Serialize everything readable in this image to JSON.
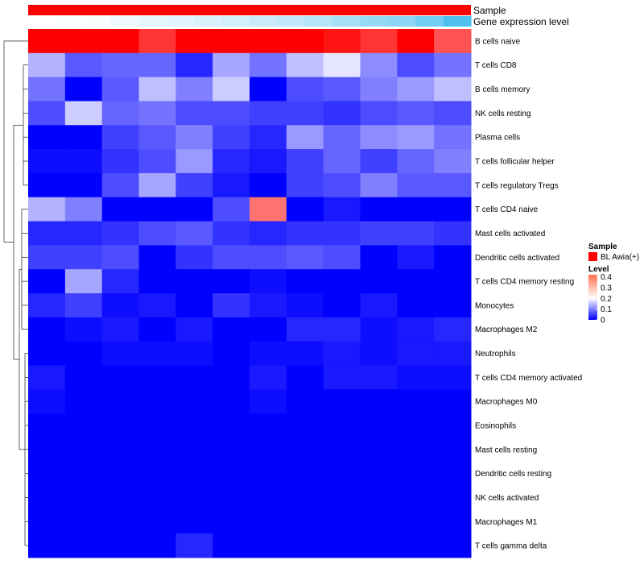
{
  "chart_data": {
    "type": "heatmap",
    "annotations": [
      {
        "name": "Sample",
        "kind": "categorical",
        "values": [
          "BL Awia(+)",
          "BL Awia(+)",
          "BL Awia(+)",
          "BL Awia(+)",
          "BL Awia(+)",
          "BL Awia(+)",
          "BL Awia(+)",
          "BL Awia(+)",
          "BL Awia(+)",
          "BL Awia(+)",
          "BL Awia(+)",
          "BL Awia(+)",
          "BL Awia(+)",
          "BL Awia(+)",
          "BL Awia(+)",
          "BL Awia(+)",
          "BL Awia(+)",
          "BL Awia(+)",
          "BL Awia(+)",
          "BL Awia(+)",
          "BL Awia(+)",
          "BL Awia(+)",
          "BL Awia(+)",
          "BL Awia(+)",
          "BL Awia(+)",
          "BL Awia(+)",
          "BL Awia(+)",
          "BL Awia(+)",
          "BL Awia(+)",
          "BL Awia(+)",
          "BL Awia(+)",
          "BL Awia(+)",
          "BL Awia(+)",
          "BL Awia(+)",
          "BL Awia(+)",
          "BL Awia(+)",
          "BL Awia(+)",
          "BL Awia(+)",
          "BL Awia(+)",
          "BL Awia(+)",
          "BL Awia(+)",
          "BL Awia(+)",
          "BL Awia(+)",
          "BL Awia(+)",
          "BL Awia(+)",
          "BL Awia(+)",
          "BL Awia(+)",
          "BL Awia(+)",
          "BL Awia(+)",
          "BL Awia(+)",
          "BL Awia(+)",
          "BL Awia(+)",
          "BL Awia(+)",
          "BL Awia(+)",
          "BL Awia(+)",
          "BL Awia(+)",
          "BL Awia(+)",
          "BL Awia(+)",
          "BL Awia(+)",
          "BL Awia(+)",
          "BL Awia(+)",
          "BL Awia(+)",
          "BL Awia(+)",
          "BL Awia(+)",
          "BL Awia(+)",
          "BL Awia(+)",
          "BL Awia(+)",
          "BL Awia(+)",
          "BL Awia(+)",
          "BL Awia(+)",
          "BL Awia(+)",
          "BL Awia(+)",
          "BL Awia(+)",
          "BL Awia(+)",
          "BL Awia(+)",
          "BL Awia(+)",
          "BL Awia(+)",
          "BL Awia(+)",
          "BL Awia(+)",
          "BL Awia(+)",
          "BL Awia(+)",
          "BL Awia(+)",
          "BL Awia(+)",
          "BL Awia(+)",
          "BL Awia(+)",
          "BL Awia(+)",
          "BL Awia(+)",
          "BL Awia(+)",
          "BL Awia(+)",
          "BL Awia(+)",
          "BL Awia(+)",
          "BL Awia(+)",
          "BL Awia(+)",
          "BL Awia(+)",
          "BL Awia(+)",
          "BL Awia(+)",
          "BL Awia(+)",
          "BL Awia(+)",
          "BL Awia(+)",
          "BL Awia(+)",
          "BL Awia(+)",
          "BL Awia(+)",
          "BL Awia(+)",
          "BL Awia(+)",
          "BL Awia(+)",
          "BL Awia(+)",
          "BL Awia(+)",
          "BL Awia(+)",
          "BL Awia(+)",
          "BL Awia(+)",
          "BL Awia(+)",
          "BL Awia(+)",
          "BL Awia(+)",
          "BL Awia(+)",
          "BL Awia(+)",
          "BL Awia(+)",
          "BL Awia(+)",
          "BL Awia(+)",
          "BL Awia(+)",
          "BL Awia(+)",
          "BL Awia(+)",
          "BL Awia(+)",
          "BL Awia(+)",
          "BL Awia(+)",
          "BL Awia(+)",
          "BL Awia(+)",
          "BL Awia(+)",
          "BL Awia(+)",
          "BL Awia(+)",
          "BL Awia(+)",
          "BL Awia(+)",
          "BL Awia(+)",
          "BL Awia(+)",
          "BL Awia(+)",
          "BL Awia(+)",
          "BL Awia(+)",
          "BL Awia(+)",
          "BL Awia(+)",
          "BL Awia(+)",
          "BL Awia(+)",
          "BL Awia(+)",
          "BL Awia(+)",
          "BL Awia(+)",
          "BL Awia(+)",
          "BL Awia(+)",
          "BL Awia(+)",
          "BL Awia(+)",
          "BL Awia(+)",
          "BL Awia(+)",
          "BL Awia(+)",
          "BL Awia(+)",
          "BL Awia(+)",
          "BL Awia(+)",
          "BL Awia(+)",
          "BL Awia(+)",
          "BL Awia(+)",
          "BL Awia(+)",
          "BL Awia(+)",
          "BL Awia(+)",
          "BL Awia(+)",
          "BL Awia(+)",
          "BL Awia(+)",
          "BL Awia(+)",
          "BL Awia(+)",
          "BL Awia(+)",
          "BL Awia(+)",
          "BL Awia(+)",
          "BL Awia(+)",
          "BL Awia(+)",
          "BL Awia(+)",
          "BL Awia(+)",
          "BL Awia(+)",
          "BL Awia(+)",
          "BL Awia(+)",
          "BL Awia(+)",
          "BL Awia(+)",
          "BL Awia(+)",
          "BL Awia(+)",
          "BL Awia(+)",
          "BL Awia(+)",
          "BL Awia(+)",
          "BL Awia(+)",
          "BL Awia(+)",
          "BL Awia(+)",
          "BL Awia(+)",
          "BL Awia(+)",
          "BL Awia(+)",
          "BL Awia(+)",
          "BL Awia(+)",
          "BL Awia(+)",
          "BL Awia(+)",
          "BL Awia(+)",
          "BL Awia(+)",
          "BL Awia(+)",
          "BL Awia(+)",
          "BL Awia(+)",
          "BL Awia(+)",
          "BL Awia(+)",
          "BL Awia(+)",
          "BL Awia(+)"
        ],
        "color": "#ff0000"
      },
      {
        "name": "Gene expression level",
        "kind": "continuous",
        "values": [
          0.0,
          0.02,
          0.04,
          0.1,
          0.14,
          0.18,
          0.22,
          0.26,
          0.3,
          0.36,
          0.42,
          0.52,
          0.6,
          0.66,
          0.8,
          1.0
        ],
        "color_low": "#ffffff",
        "color_high": "#4fc1ef"
      }
    ],
    "rows": [
      "B cells naive",
      "T cells CD8",
      "B cells memory",
      "NK cells resting",
      "Plasma cells",
      "T cells follicular helper",
      "T cells regulatory  Tregs",
      "T cells CD4 naive",
      "Mast cells activated",
      "Dendritic cells activated",
      "T cells CD4 memory resting",
      "Monocytes",
      "Macrophages M2",
      "Neutrophils",
      "T cells CD4 memory activated",
      "Macrophages M0",
      "Eosinophils",
      "Mast cells resting",
      "Dendritic cells resting",
      "NK cells activated",
      "Macrophages M1",
      "T cells gamma delta"
    ],
    "values": [
      [
        0.42,
        0.42,
        0.42,
        0.33,
        0.38,
        0.39,
        0.41,
        0.41,
        0.35,
        0.33,
        0.38,
        0.31
      ],
      [
        0.14,
        0.07,
        0.08,
        0.08,
        0.03,
        0.13,
        0.09,
        0.15,
        0.18,
        0.11,
        0.06,
        0.09
      ],
      [
        0.09,
        0.0,
        0.07,
        0.15,
        0.1,
        0.16,
        0.0,
        0.06,
        0.07,
        0.1,
        0.12,
        0.15
      ],
      [
        0.06,
        0.16,
        0.08,
        0.09,
        0.06,
        0.06,
        0.05,
        0.05,
        0.04,
        0.06,
        0.07,
        0.06
      ],
      [
        0.0,
        0.0,
        0.05,
        0.07,
        0.1,
        0.05,
        0.03,
        0.12,
        0.08,
        0.11,
        0.12,
        0.09
      ],
      [
        0.01,
        0.01,
        0.04,
        0.06,
        0.12,
        0.03,
        0.02,
        0.05,
        0.08,
        0.05,
        0.08,
        0.1
      ],
      [
        0.0,
        0.0,
        0.06,
        0.13,
        0.05,
        0.02,
        0.0,
        0.05,
        0.06,
        0.1,
        0.07,
        0.07
      ],
      [
        0.14,
        0.1,
        0.0,
        0.0,
        0.0,
        0.06,
        0.29,
        0.0,
        0.02,
        0.0,
        0.0,
        0.0
      ],
      [
        0.03,
        0.03,
        0.04,
        0.06,
        0.07,
        0.04,
        0.03,
        0.04,
        0.04,
        0.05,
        0.05,
        0.04
      ],
      [
        0.05,
        0.05,
        0.06,
        0.0,
        0.04,
        0.06,
        0.06,
        0.07,
        0.06,
        0.0,
        0.02,
        0.0
      ],
      [
        0.0,
        0.13,
        0.03,
        0.0,
        0.0,
        0.0,
        0.01,
        0.0,
        0.0,
        0.0,
        0.0,
        0.0
      ],
      [
        0.03,
        0.05,
        0.01,
        0.02,
        0.0,
        0.04,
        0.02,
        0.01,
        0.0,
        0.02,
        0.0,
        0.0
      ],
      [
        0.0,
        0.01,
        0.02,
        0.0,
        0.02,
        0.0,
        0.0,
        0.03,
        0.03,
        0.01,
        0.02,
        0.03
      ],
      [
        0.0,
        0.0,
        0.01,
        0.01,
        0.01,
        0.0,
        0.01,
        0.01,
        0.02,
        0.01,
        0.02,
        0.02
      ],
      [
        0.02,
        0.0,
        0.0,
        0.0,
        0.0,
        0.0,
        0.02,
        0.0,
        0.02,
        0.02,
        0.01,
        0.01
      ],
      [
        0.01,
        0.0,
        0.0,
        0.0,
        0.0,
        0.0,
        0.01,
        0.0,
        0.0,
        0.0,
        0.0,
        0.0
      ],
      [
        0.0,
        0.0,
        0.0,
        0.0,
        0.0,
        0.0,
        0.0,
        0.0,
        0.0,
        0.0,
        0.0,
        0.0
      ],
      [
        0.0,
        0.0,
        0.0,
        0.0,
        0.0,
        0.0,
        0.0,
        0.0,
        0.0,
        0.0,
        0.0,
        0.0
      ],
      [
        0.0,
        0.0,
        0.0,
        0.0,
        0.0,
        0.0,
        0.0,
        0.0,
        0.0,
        0.0,
        0.0,
        0.0
      ],
      [
        0.0,
        0.0,
        0.0,
        0.0,
        0.0,
        0.0,
        0.0,
        0.0,
        0.0,
        0.0,
        0.0,
        0.0
      ],
      [
        0.0,
        0.0,
        0.0,
        0.0,
        0.0,
        0.0,
        0.0,
        0.0,
        0.0,
        0.0,
        0.0,
        0.0
      ],
      [
        0.0,
        0.0,
        0.0,
        0.0,
        0.03,
        0.0,
        0.0,
        0.0,
        0.0,
        0.0,
        0.0,
        0.0
      ]
    ],
    "color_scale": {
      "low": "#0000ff",
      "mid": "#ffffff",
      "high": "#ff0000",
      "range": [
        0,
        0.42
      ],
      "midpoint": 0.2
    },
    "legend": {
      "sample_title": "Sample",
      "sample_entry": "BL Awia(+)",
      "sample_color": "#ff0000",
      "level_title": "Level",
      "level_ticks": [
        0.4,
        0.3,
        0.2,
        0.1,
        0
      ],
      "placement": "right"
    },
    "row_dendrogram": true,
    "grid": false
  }
}
